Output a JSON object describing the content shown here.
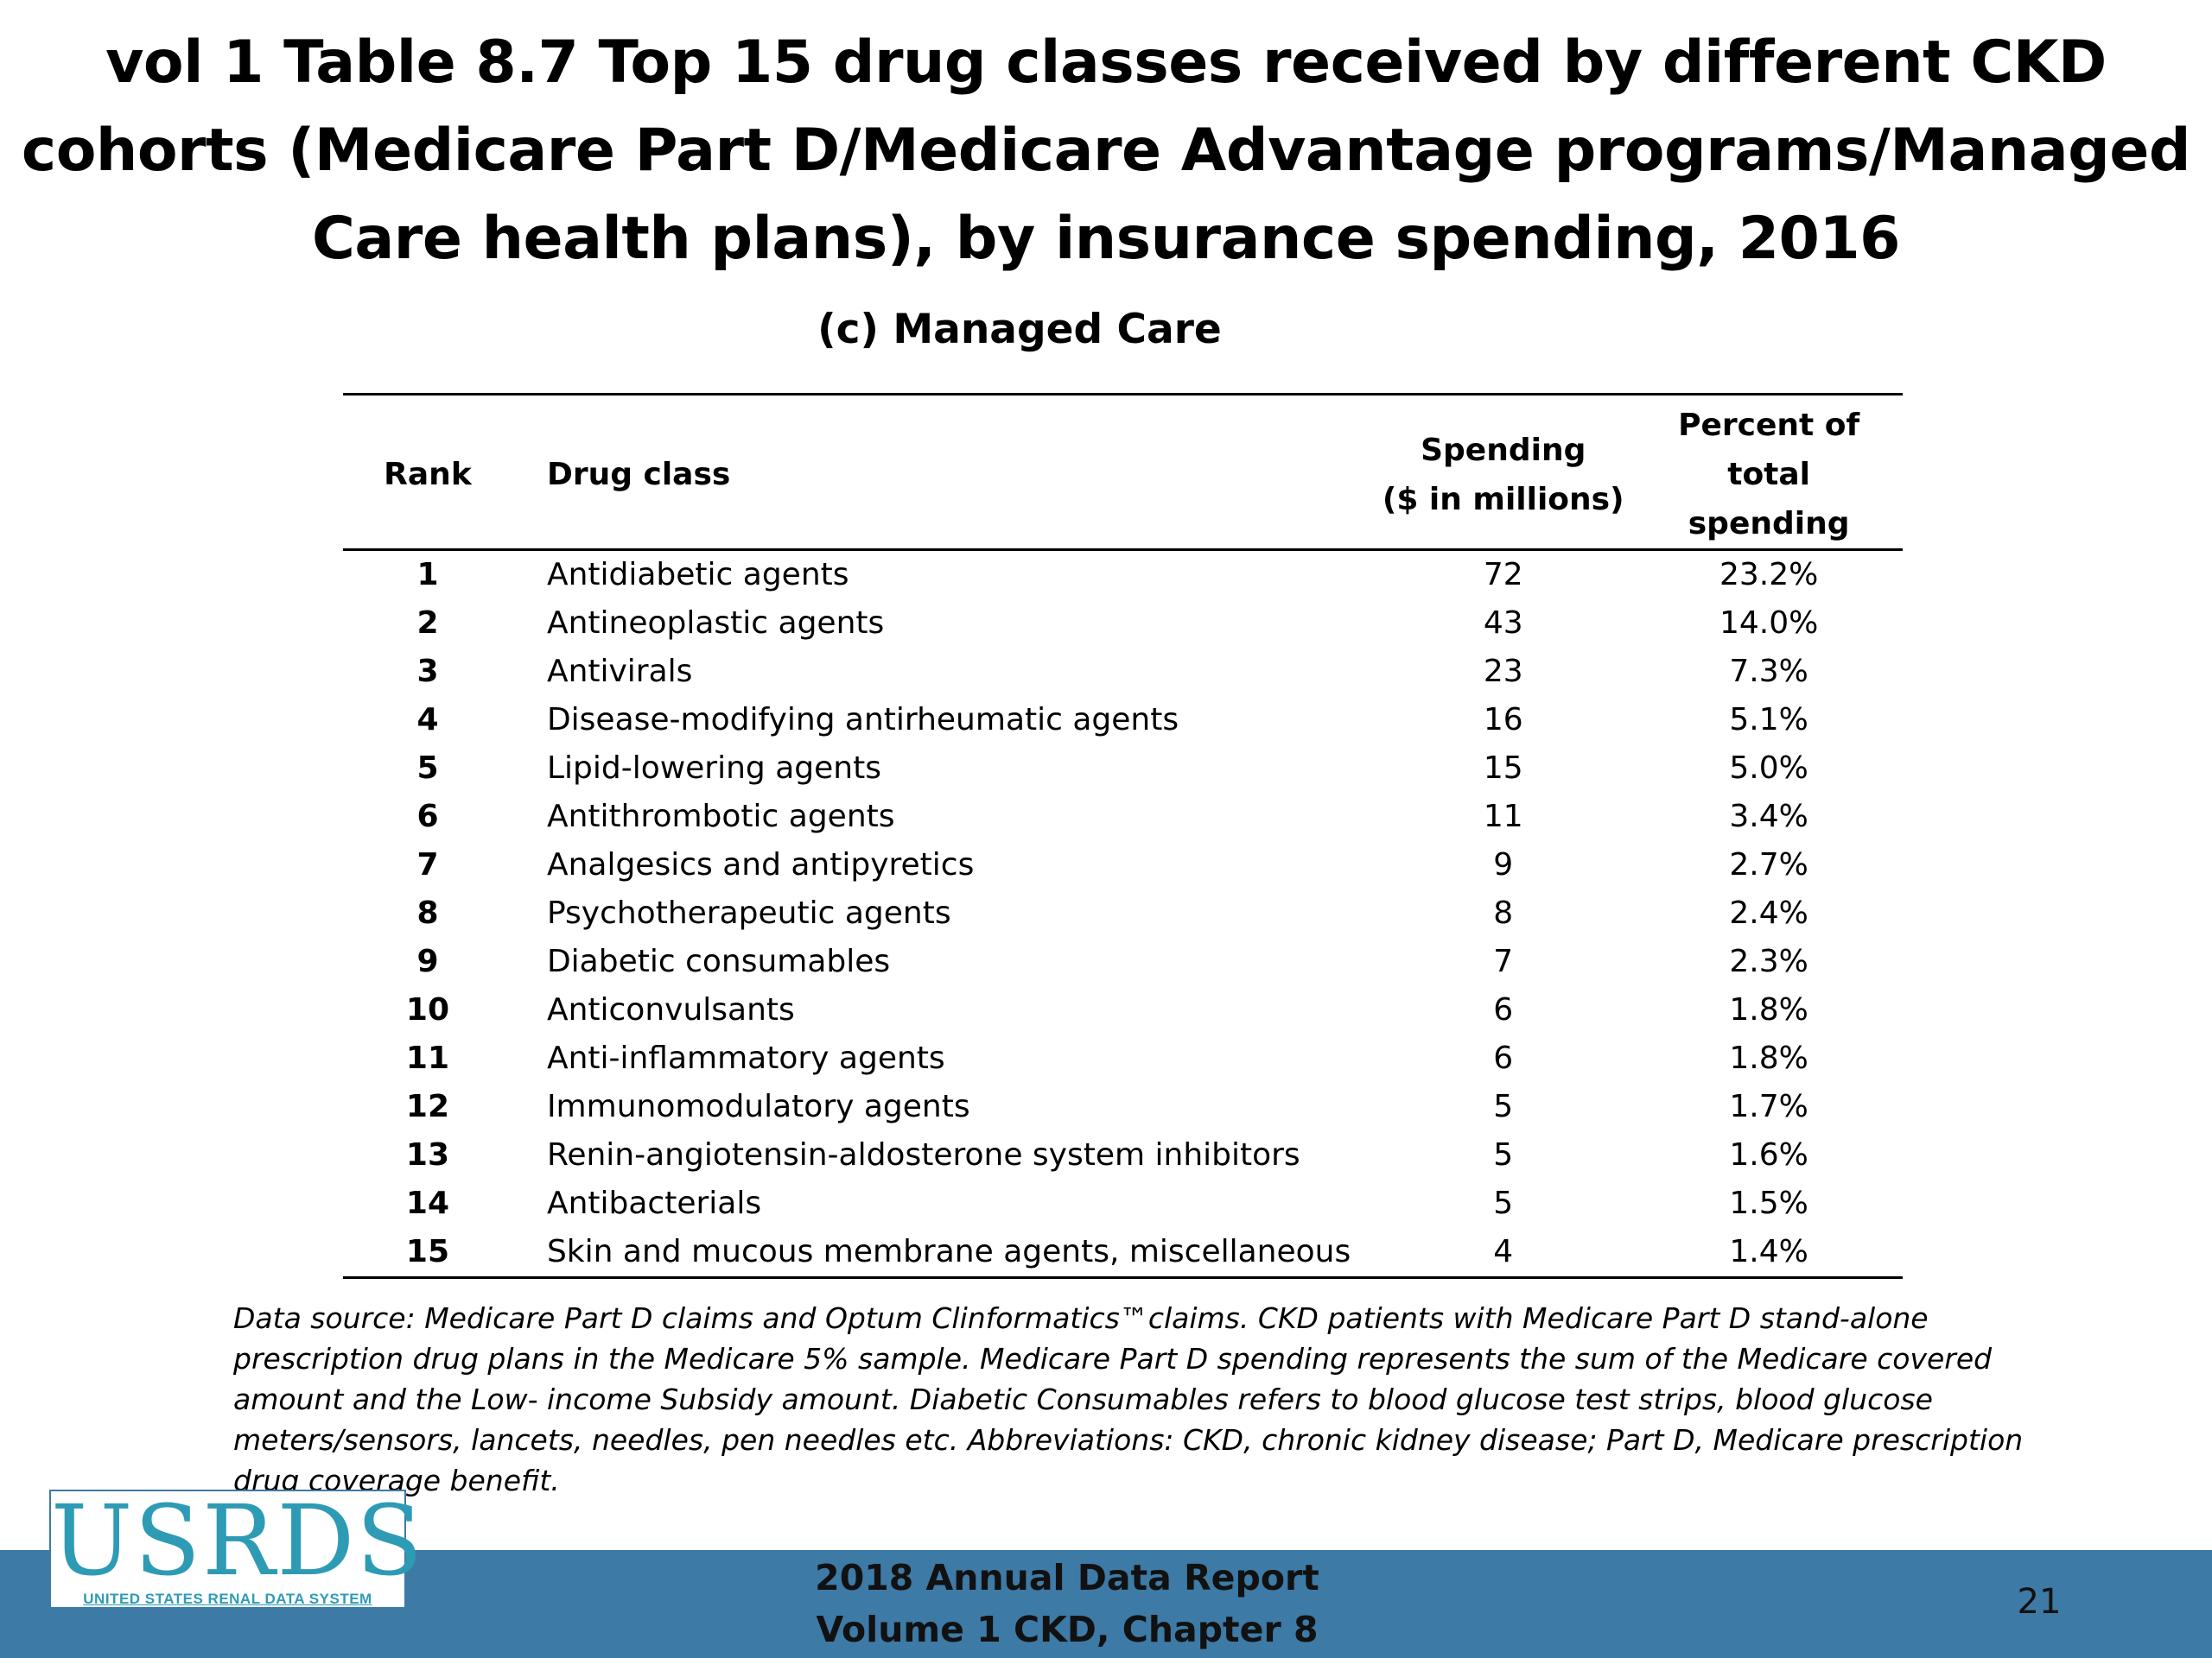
{
  "title": "vol 1 Table 8.7 Top 15 drug classes received by different CKD cohorts (Medicare Part D/Medicare Advantage programs/Managed Care health plans), by insurance spending, 2016",
  "subtitle": "(c) Managed Care",
  "table": {
    "headers": {
      "rank": "Rank",
      "drug_class": "Drug class",
      "spending_line1": "Spending",
      "spending_line2": "($ in millions)",
      "percent_line1": "Percent of total",
      "percent_line2": "spending"
    },
    "rows": [
      {
        "rank": "1",
        "drug_class": "Antidiabetic agents",
        "spending": "72",
        "percent": "23.2%"
      },
      {
        "rank": "2",
        "drug_class": "Antineoplastic agents",
        "spending": "43",
        "percent": "14.0%"
      },
      {
        "rank": "3",
        "drug_class": "Antivirals",
        "spending": "23",
        "percent": "7.3%"
      },
      {
        "rank": "4",
        "drug_class": "Disease-modifying antirheumatic agents",
        "spending": "16",
        "percent": "5.1%"
      },
      {
        "rank": "5",
        "drug_class": "Lipid-lowering agents",
        "spending": "15",
        "percent": "5.0%"
      },
      {
        "rank": "6",
        "drug_class": "Antithrombotic agents",
        "spending": "11",
        "percent": "3.4%"
      },
      {
        "rank": "7",
        "drug_class": "Analgesics and antipyretics",
        "spending": "9",
        "percent": "2.7%"
      },
      {
        "rank": "8",
        "drug_class": "Psychotherapeutic agents",
        "spending": "8",
        "percent": "2.4%"
      },
      {
        "rank": "9",
        "drug_class": "Diabetic consumables",
        "spending": "7",
        "percent": "2.3%"
      },
      {
        "rank": "10",
        "drug_class": "Anticonvulsants",
        "spending": "6",
        "percent": "1.8%"
      },
      {
        "rank": "11",
        "drug_class": "Anti-inflammatory agents",
        "spending": "6",
        "percent": "1.8%"
      },
      {
        "rank": "12",
        "drug_class": "Immunomodulatory agents",
        "spending": "5",
        "percent": "1.7%"
      },
      {
        "rank": "13",
        "drug_class": "Renin-angiotensin-aldosterone system inhibitors",
        "spending": "5",
        "percent": "1.6%"
      },
      {
        "rank": "14",
        "drug_class": "Antibacterials",
        "spending": "5",
        "percent": "1.5%"
      },
      {
        "rank": "15",
        "drug_class": "Skin and mucous membrane agents, miscellaneous",
        "spending": "4",
        "percent": "1.4%"
      }
    ]
  },
  "footnote": "Data source: Medicare Part D claims and Optum Clinformatics™claims. CKD patients with Medicare Part D stand-alone prescription drug plans in the Medicare 5% sample. Medicare Part D spending represents the sum of the Medicare covered amount and the Low- income Subsidy amount. Diabetic Consumables refers to blood glucose test strips, blood glucose meters/sensors, lancets, needles, pen needles etc. Abbreviations: CKD, chronic kidney disease; Part D, Medicare prescription drug coverage benefit.",
  "footer": {
    "logo_text": "USRDS",
    "logo_subtext": "UNITED STATES RENAL DATA SYSTEM",
    "report_line1": "2018 Annual Data Report",
    "report_line2": "Volume 1 CKD, Chapter 8",
    "page_number": "21"
  },
  "colors": {
    "footer_bar": "#3d7aa6",
    "logo_text": "#2e9bb5"
  }
}
